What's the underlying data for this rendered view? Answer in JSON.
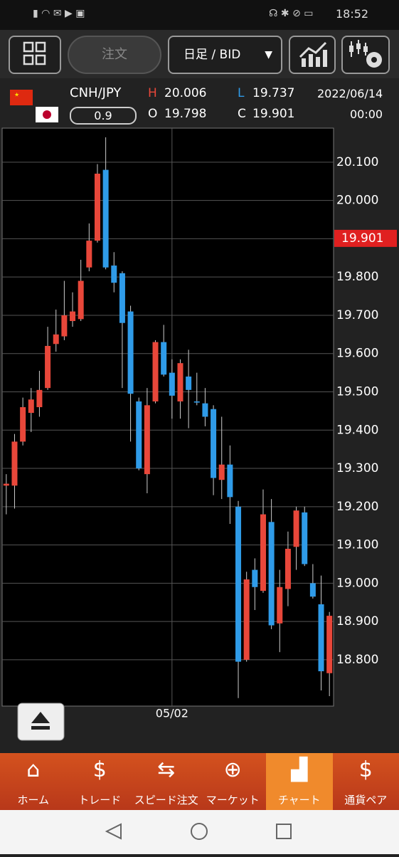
{
  "status_bar": {
    "time": "18:52"
  },
  "toolbar": {
    "order": "注文",
    "timeframe": "日足 / BID"
  },
  "quote": {
    "pair": "CNH/JPY",
    "spread": "0.9",
    "h_label": "H",
    "high": "20.006",
    "l_label": "L",
    "low": "19.737",
    "o_label": "O",
    "open": "19.798",
    "c_label": "C",
    "close": "19.901",
    "date": "2022/06/14",
    "time": "00:00"
  },
  "chart_data": {
    "type": "candlestick",
    "categories": [
      null,
      null,
      null,
      null,
      null,
      null,
      null,
      null,
      null,
      null,
      null,
      null,
      null,
      null,
      null,
      null,
      null,
      null,
      null,
      null,
      "05/02",
      null,
      null,
      null,
      null,
      null,
      null,
      null,
      null,
      null,
      null,
      null,
      null,
      null,
      null,
      null,
      null,
      null,
      null,
      null
    ],
    "open": [
      19.255,
      19.255,
      19.37,
      19.445,
      19.46,
      19.51,
      19.625,
      19.645,
      19.685,
      19.69,
      19.825,
      19.895,
      20.08,
      19.83,
      19.81,
      19.71,
      19.475,
      19.285,
      19.475,
      19.63,
      19.55,
      19.475,
      19.54,
      19.475,
      19.47,
      19.455,
      19.27,
      19.31,
      19.2,
      18.8,
      19.035,
      18.98,
      19.16,
      18.895,
      18.985,
      19.095,
      19.185,
      19.0,
      18.945,
      18.765
    ],
    "high": [
      19.285,
      19.39,
      19.485,
      19.51,
      19.555,
      19.67,
      19.715,
      19.79,
      19.76,
      19.845,
      19.94,
      20.095,
      20.165,
      19.865,
      19.815,
      19.725,
      19.485,
      19.51,
      19.635,
      19.675,
      19.585,
      19.585,
      19.61,
      19.55,
      19.51,
      19.465,
      19.435,
      19.36,
      19.215,
      19.03,
      19.065,
      19.245,
      19.22,
      19.035,
      19.135,
      19.2,
      19.2,
      19.05,
      19.02,
      18.925
    ],
    "low": [
      19.18,
      19.195,
      19.36,
      19.395,
      19.435,
      19.505,
      19.605,
      19.635,
      19.67,
      19.685,
      19.815,
      19.89,
      19.82,
      19.76,
      19.51,
      19.37,
      19.295,
      19.235,
      19.47,
      19.54,
      19.43,
      19.43,
      19.405,
      19.465,
      19.41,
      19.23,
      19.22,
      19.155,
      18.7,
      18.795,
      18.93,
      18.975,
      18.88,
      18.82,
      18.94,
      19.035,
      19.045,
      18.96,
      18.72,
      18.705
    ],
    "close": [
      19.26,
      19.37,
      19.46,
      19.48,
      19.505,
      19.62,
      19.65,
      19.7,
      19.71,
      19.79,
      19.895,
      20.07,
      19.825,
      19.785,
      19.68,
      19.495,
      19.3,
      19.465,
      19.63,
      19.545,
      19.49,
      19.575,
      19.505,
      19.472,
      19.435,
      19.275,
      19.31,
      19.225,
      18.795,
      19.01,
      18.99,
      19.18,
      18.89,
      18.99,
      19.09,
      19.19,
      19.05,
      18.965,
      18.77,
      18.915
    ],
    "up_color": "#e8473a",
    "down_color": "#2f9be8",
    "ylim": [
      18.679,
      20.189
    ],
    "yticks": [
      {
        "value": 18.8,
        "label": "18.800"
      },
      {
        "value": 18.9,
        "label": "18.900"
      },
      {
        "value": 19.0,
        "label": "19.000"
      },
      {
        "value": 19.1,
        "label": "19.100"
      },
      {
        "value": 19.2,
        "label": "19.200"
      },
      {
        "value": 19.3,
        "label": "19.300"
      },
      {
        "value": 19.4,
        "label": "19.400"
      },
      {
        "value": 19.5,
        "label": "19.500"
      },
      {
        "value": 19.6,
        "label": "19.600"
      },
      {
        "value": 19.7,
        "label": "19.700"
      },
      {
        "value": 19.8,
        "label": "19.800"
      },
      {
        "value": 19.9,
        "label": "19.900"
      },
      {
        "value": 20.0,
        "label": "20.000"
      },
      {
        "value": 20.1,
        "label": "20.100"
      }
    ],
    "grid": true,
    "last_price": {
      "value": 19.901,
      "label": "19.901"
    }
  },
  "nav": [
    "ホーム",
    "トレード",
    "スピード注文",
    "マーケット",
    "チャート",
    "通貨ペア"
  ]
}
